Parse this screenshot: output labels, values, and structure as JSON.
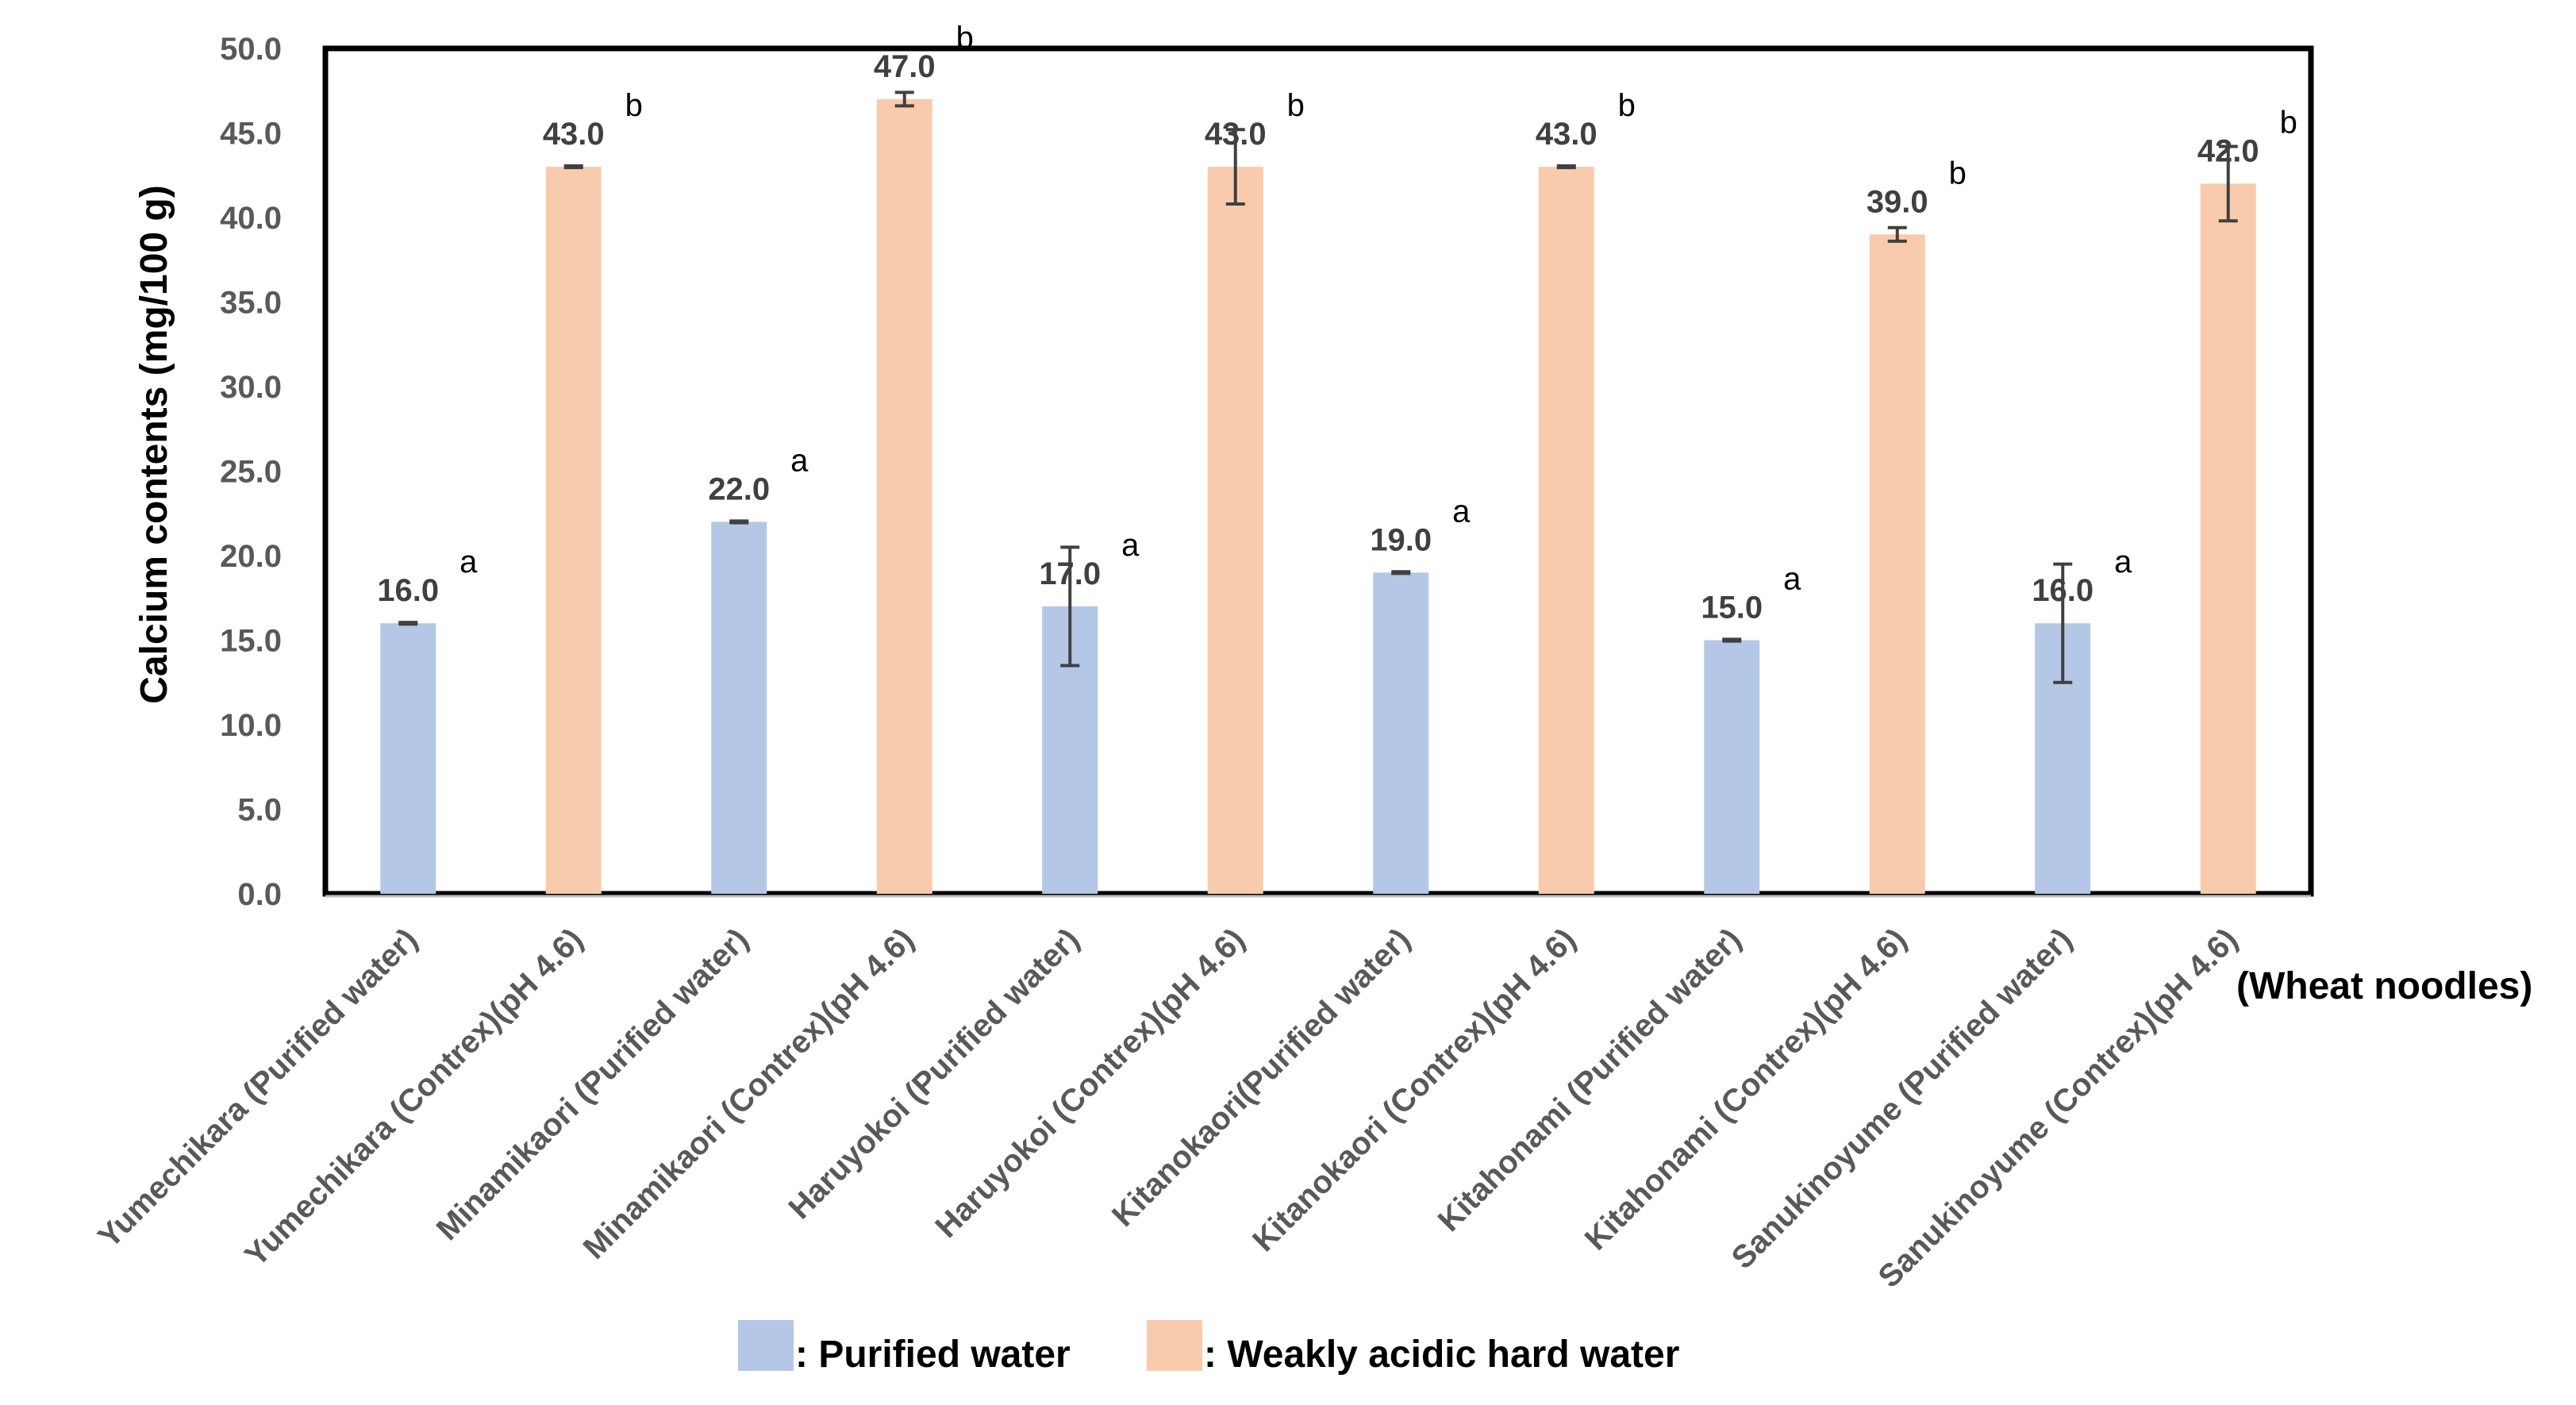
{
  "chart_data": {
    "type": "bar",
    "title": "",
    "ylabel": "Calcium contents (mg/100 g)",
    "xlabel": "(Wheat noodles)",
    "ylim": [
      0,
      50
    ],
    "yticks": [
      "0.0",
      "5.0",
      "10.0",
      "15.0",
      "20.0",
      "25.0",
      "30.0",
      "35.0",
      "40.0",
      "45.0",
      "50.0"
    ],
    "grid": false,
    "categories": [
      "Yumechikara (Purified water)",
      "Yumechikara  (Contrex)(pH 4.6)",
      "Minamikaori (Purified water)",
      "Minamikaori  (Contrex)(pH 4.6)",
      "Haruyokoi (Purified water)",
      "Haruyokoi (Contrex)(pH 4.6)",
      "Kitanokaori(Purified water)",
      "Kitanokaori (Contrex)(pH 4.6)",
      "Kitahonami (Purified water)",
      "Kitahonami (Contrex)(pH 4.6)",
      "Sanukinoyume (Purified water)",
      "Sanukinoyume (Contrex)(pH 4.6)"
    ],
    "values": [
      16.0,
      43.0,
      22.0,
      47.0,
      17.0,
      43.0,
      19.0,
      43.0,
      15.0,
      39.0,
      16.0,
      42.0
    ],
    "value_labels": [
      "16.0",
      "43.0",
      "22.0",
      "47.0",
      "17.0",
      "43.0",
      "19.0",
      "43.0",
      "15.0",
      "39.0",
      "16.0",
      "42.0"
    ],
    "errors": [
      0.05,
      0.05,
      0.05,
      0.4,
      3.5,
      2.2,
      0.05,
      0.05,
      0.05,
      0.4,
      3.5,
      2.2
    ],
    "significance": [
      "a",
      "b",
      "a",
      "b",
      "a",
      "b",
      "a",
      "b",
      "a",
      "b",
      "a",
      "b"
    ],
    "series_index": [
      0,
      1,
      0,
      1,
      0,
      1,
      0,
      1,
      0,
      1,
      0,
      1
    ],
    "series": [
      {
        "name": ": Purified water",
        "color": "#B4C7E7"
      },
      {
        "name": ": Weakly acidic hard water",
        "color": "#F8CBAD"
      }
    ],
    "legend_position": "bottom"
  }
}
